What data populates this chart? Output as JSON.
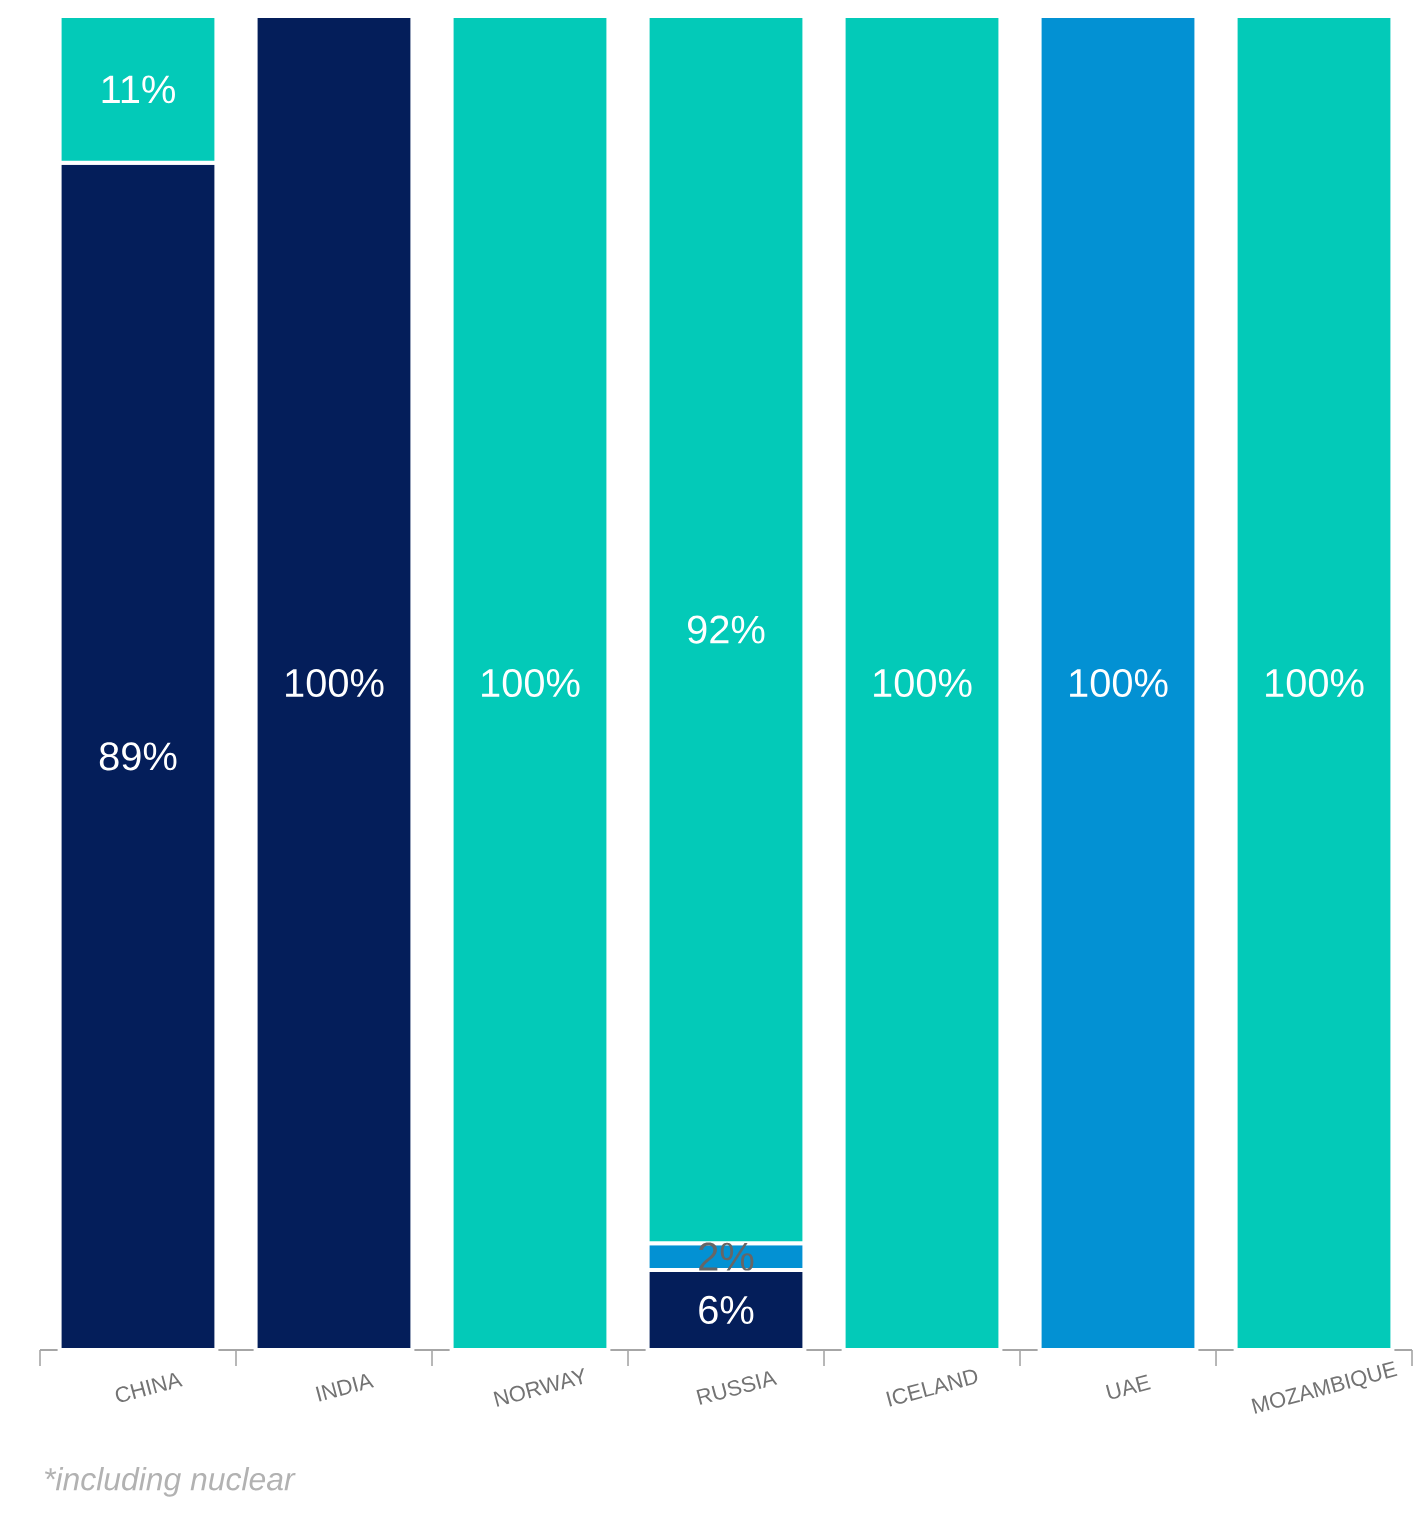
{
  "chart_data": {
    "type": "bar",
    "stacked": true,
    "categories": [
      "CHINA",
      "INDIA",
      "NORWAY",
      "RUSSIA",
      "ICELAND",
      "UAE",
      "MOZAMBIQUE"
    ],
    "series": [
      {
        "color": "#041e5a",
        "values": [
          89,
          100,
          null,
          6,
          null,
          null,
          null
        ],
        "value_labels": [
          "89%",
          "100%",
          null,
          "6%",
          null,
          null,
          null
        ]
      },
      {
        "color": "#0391d3",
        "values": [
          null,
          null,
          null,
          2,
          null,
          100,
          null
        ],
        "value_labels": [
          null,
          null,
          null,
          "2%",
          null,
          "100%",
          null
        ]
      },
      {
        "color": "#03cab8",
        "values": [
          11,
          null,
          100,
          92,
          100,
          null,
          100
        ],
        "value_labels": [
          "11%",
          null,
          "100%",
          "92%",
          "100%",
          null,
          "100%"
        ]
      }
    ],
    "ylim": [
      0,
      100
    ],
    "tick_labels": "x",
    "annotations": [
      "*including nuclear"
    ]
  }
}
